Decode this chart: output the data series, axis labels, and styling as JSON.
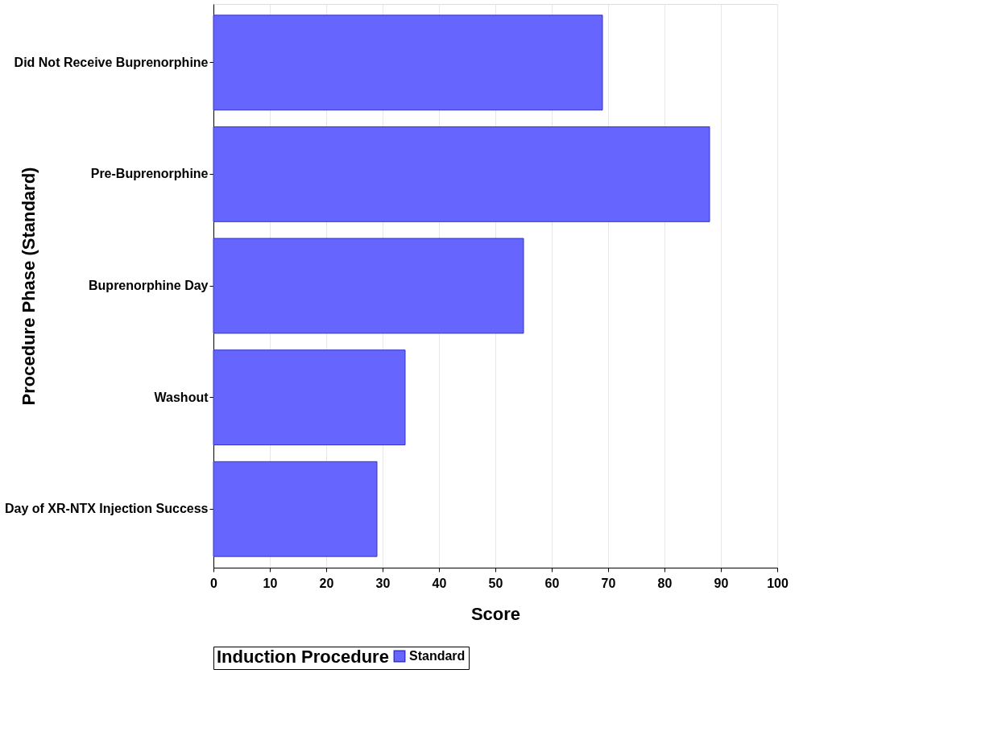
{
  "chart_data": {
    "type": "bar",
    "orientation": "horizontal",
    "xlabel": "Score",
    "ylabel": "Procedure Phase (Standard)",
    "legend_title": "Induction Procedure",
    "categories": [
      "Did Not Receive Buprenorphine",
      "Pre-Buprenorphine",
      "Buprenorphine Day",
      "Washout",
      "Day of XR-NTX Injection Success"
    ],
    "series": [
      {
        "name": "Standard",
        "color": "#6666ff",
        "values": [
          69,
          88,
          55,
          34,
          29
        ]
      }
    ],
    "xlim": [
      0,
      100
    ],
    "xticks": [
      0,
      10,
      20,
      30,
      40,
      50,
      60,
      70,
      80,
      90,
      100
    ],
    "grid": "x",
    "legend": "bottom"
  }
}
